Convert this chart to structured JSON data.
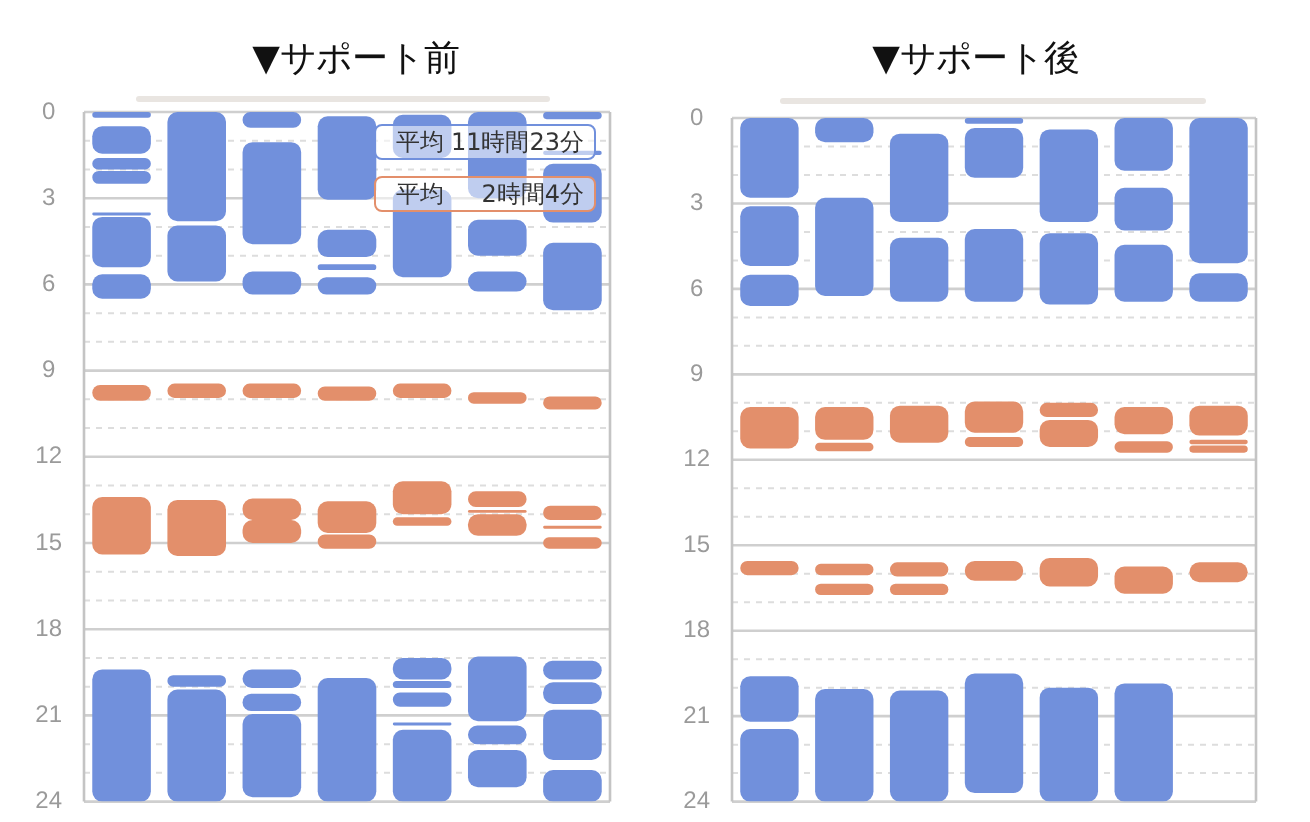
{
  "chart_data": [
    {
      "type": "bar",
      "title": "▼サポート前",
      "categories": [
        null,
        null,
        null,
        null,
        null,
        null,
        null
      ],
      "series": [
        {
          "color": "#7190dc",
          "base": [
            0,
            0,
            0,
            0.15,
            0.1,
            0,
            0
          ],
          "values": [
            0.2,
            3.8,
            0.55,
            2.9,
            1.5,
            3.0,
            0.25
          ]
        },
        {
          "color": "#7190dc",
          "base": [
            0.5,
            3.95,
            1.05,
            4.1,
            2.7,
            3.75,
            1.35
          ],
          "values": [
            0.95,
            1.95,
            3.55,
            0.95,
            3.05,
            1.25,
            0.15
          ]
        },
        {
          "color": "#7190dc",
          "base": [
            1.6,
            19.6,
            5.55,
            5.3,
            19.0,
            5.55,
            1.8
          ],
          "values": [
            0.4,
            0.4,
            0.8,
            0.2,
            0.75,
            0.7,
            2.05
          ]
        },
        {
          "color": "#7190dc",
          "base": [
            2.05,
            20.1,
            19.4,
            5.75,
            19.8,
            18.95,
            4.55
          ],
          "values": [
            0.45,
            3.9,
            0.65,
            0.6,
            0.25,
            2.25,
            2.35
          ]
        },
        {
          "color": "#7190dc",
          "base": [
            3.5,
            null,
            20.25,
            19.7,
            20.2,
            21.35,
            19.1
          ],
          "values": [
            0.1,
            null,
            0.6,
            4.3,
            0.5,
            0.65,
            0.65
          ]
        },
        {
          "color": "#7190dc",
          "base": [
            3.65,
            null,
            20.95,
            null,
            21.25,
            22.2,
            19.85
          ],
          "values": [
            1.75,
            null,
            2.9,
            null,
            0.1,
            1.3,
            0.75
          ]
        },
        {
          "color": "#7190dc",
          "base": [
            5.65,
            null,
            null,
            null,
            21.5,
            null,
            20.8
          ],
          "values": [
            0.85,
            null,
            null,
            null,
            2.5,
            null,
            1.75
          ]
        },
        {
          "color": "#7190dc",
          "base": [
            19.4,
            null,
            null,
            null,
            null,
            null,
            22.9
          ],
          "values": [
            4.6,
            null,
            null,
            null,
            null,
            null,
            1.1
          ]
        },
        {
          "color": "#e38f6b",
          "base": [
            9.5,
            9.45,
            9.45,
            9.55,
            9.45,
            9.75,
            9.9
          ],
          "values": [
            0.55,
            0.5,
            0.5,
            0.5,
            0.5,
            0.4,
            0.45
          ]
        },
        {
          "color": "#e38f6b",
          "base": [
            13.4,
            13.5,
            13.45,
            13.55,
            12.85,
            13.2,
            13.7
          ],
          "values": [
            2.0,
            1.95,
            0.75,
            1.1,
            1.15,
            0.55,
            0.5
          ]
        },
        {
          "color": "#e38f6b",
          "base": [
            null,
            null,
            14.2,
            14.7,
            14.1,
            13.85,
            14.4
          ],
          "values": [
            null,
            null,
            0.8,
            0.5,
            0.3,
            0.1,
            0.1
          ]
        },
        {
          "color": "#e38f6b",
          "base": [
            null,
            null,
            null,
            null,
            null,
            14.0,
            14.8
          ],
          "values": [
            null,
            null,
            null,
            null,
            null,
            0.75,
            0.4
          ]
        }
      ],
      "ylim": [
        24,
        0
      ],
      "yticks": [
        0,
        {
          "value": 1,
          "label": null
        },
        {
          "value": 2,
          "label": null
        },
        3,
        {
          "value": 4,
          "label": null
        },
        {
          "value": 5,
          "label": null
        },
        6,
        {
          "value": 7,
          "label": null
        },
        {
          "value": 8,
          "label": null
        },
        9,
        {
          "value": 10,
          "label": null
        },
        {
          "value": 11,
          "label": null
        },
        12,
        {
          "value": 13,
          "label": null
        },
        {
          "value": 14,
          "label": null
        },
        15,
        {
          "value": 16,
          "label": null
        },
        {
          "value": 17,
          "label": null
        },
        18,
        {
          "value": 19,
          "label": null
        },
        {
          "value": 20,
          "label": null
        },
        21,
        {
          "value": 22,
          "label": null
        },
        {
          "value": 23,
          "label": null
        },
        24
      ],
      "grid": "y",
      "tick_labels": "y",
      "annotations": [
        "平均 11時間23分",
        "平均 2時間4分"
      ]
    },
    {
      "type": "bar",
      "title": "▼サポート後",
      "categories": [
        null,
        null,
        null,
        null,
        null,
        null,
        null
      ],
      "series": [
        {
          "color": "#7190dc",
          "base": [
            0,
            0,
            0.55,
            0,
            0.4,
            0,
            0
          ],
          "values": [
            2.8,
            0.85,
            3.1,
            0.2,
            3.25,
            1.85,
            5.1
          ]
        },
        {
          "color": "#7190dc",
          "base": [
            3.1,
            2.8,
            4.2,
            0.35,
            4.05,
            2.45,
            5.45
          ],
          "values": [
            2.1,
            3.45,
            2.25,
            1.75,
            2.5,
            1.5,
            1.0
          ]
        },
        {
          "color": "#7190dc",
          "base": [
            5.5,
            20.05,
            20.1,
            3.9,
            20.0,
            4.45,
            null
          ],
          "values": [
            1.1,
            3.95,
            3.9,
            2.55,
            4.0,
            2.0,
            null
          ]
        },
        {
          "color": "#7190dc",
          "base": [
            19.6,
            null,
            null,
            19.5,
            null,
            19.85,
            null
          ],
          "values": [
            1.6,
            null,
            null,
            4.2,
            null,
            4.15,
            null
          ]
        },
        {
          "color": "#7190dc",
          "base": [
            21.45,
            null,
            null,
            null,
            null,
            null,
            null
          ],
          "values": [
            2.55,
            null,
            null,
            null,
            null,
            null,
            null
          ]
        },
        {
          "color": "#e38f6b",
          "base": [
            10.15,
            10.15,
            10.1,
            9.95,
            10.0,
            10.15,
            10.1
          ],
          "values": [
            1.45,
            1.15,
            1.3,
            1.1,
            0.5,
            0.95,
            1.05
          ]
        },
        {
          "color": "#e38f6b",
          "base": [
            15.55,
            11.4,
            15.6,
            11.2,
            10.6,
            11.35,
            11.3
          ],
          "values": [
            0.5,
            0.3,
            0.5,
            0.35,
            0.95,
            0.4,
            0.15
          ]
        },
        {
          "color": "#e38f6b",
          "base": [
            null,
            15.65,
            16.35,
            15.55,
            15.45,
            15.75,
            11.5
          ],
          "values": [
            null,
            0.4,
            0.4,
            0.7,
            1.0,
            0.95,
            0.25
          ]
        },
        {
          "color": "#e38f6b",
          "base": [
            null,
            16.35,
            null,
            null,
            null,
            null,
            15.6
          ],
          "values": [
            null,
            0.4,
            null,
            null,
            null,
            null,
            0.7
          ]
        }
      ],
      "ylim": [
        24,
        0
      ],
      "yticks": [
        0,
        {
          "value": 1,
          "label": null
        },
        {
          "value": 2,
          "label": null
        },
        3,
        {
          "value": 4,
          "label": null
        },
        {
          "value": 5,
          "label": null
        },
        6,
        {
          "value": 7,
          "label": null
        },
        {
          "value": 8,
          "label": null
        },
        9,
        {
          "value": 10,
          "label": null
        },
        {
          "value": 11,
          "label": null
        },
        12,
        {
          "value": 13,
          "label": null
        },
        {
          "value": 14,
          "label": null
        },
        15,
        {
          "value": 16,
          "label": null
        },
        {
          "value": 17,
          "label": null
        },
        18,
        {
          "value": 19,
          "label": null
        },
        {
          "value": 20,
          "label": null
        },
        21,
        {
          "value": 22,
          "label": null
        },
        {
          "value": 23,
          "label": null
        },
        24
      ],
      "grid": "y",
      "tick_labels": "y"
    }
  ]
}
